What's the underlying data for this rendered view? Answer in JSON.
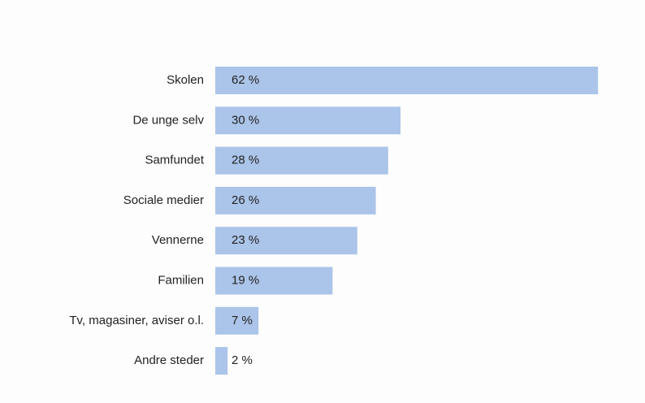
{
  "chart_data": {
    "type": "bar",
    "categories": [
      "Skolen",
      "De unge selv",
      "Samfundet",
      "Sociale medier",
      "Vennerne",
      "Familien",
      "Tv, magasiner, aviser o.l.",
      "Andre steder"
    ],
    "values": [
      62,
      30,
      28,
      26,
      23,
      19,
      7,
      2
    ],
    "value_labels": [
      "62 %",
      "30 %",
      "28 %",
      "26 %",
      "23 %",
      "19 %",
      "7 %",
      "2 %"
    ],
    "color": "#abc4e9"
  }
}
